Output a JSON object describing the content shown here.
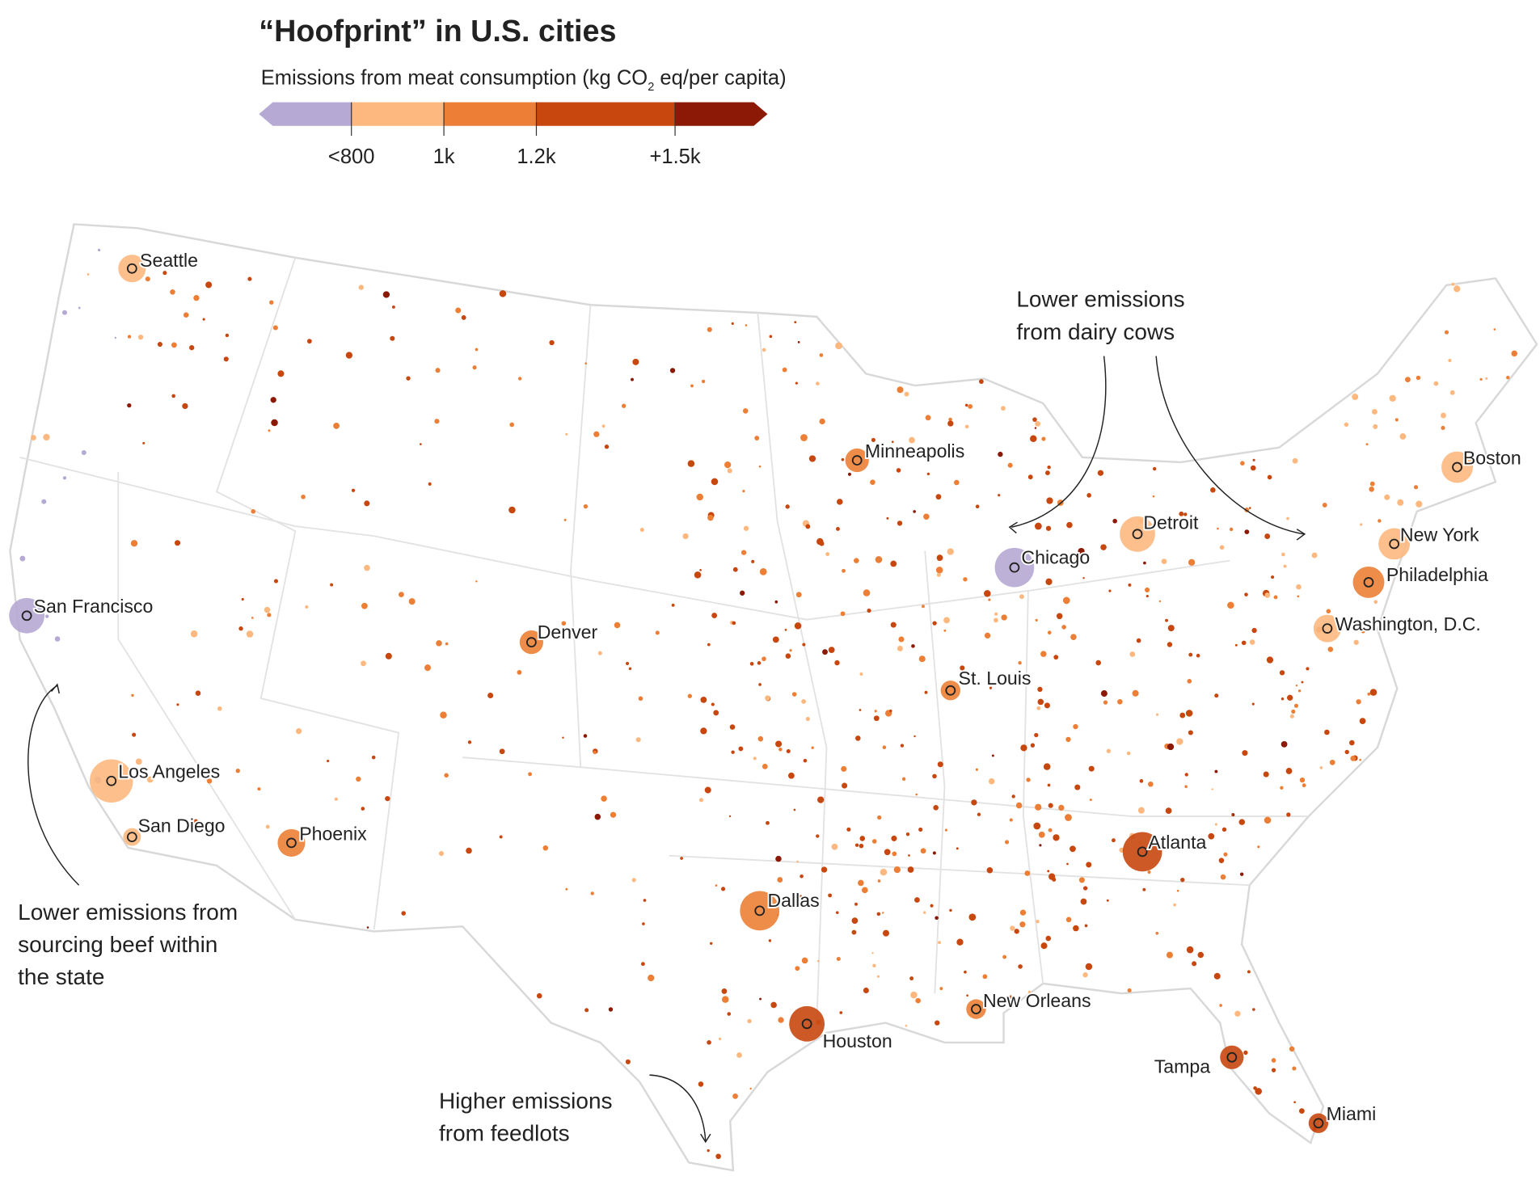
{
  "title": "“Hoofprint” in U.S. cities",
  "subtitle": {
    "before": "Emissions from meat consumption (kg CO",
    "subscript": "2",
    "after": " eq/per capita)"
  },
  "legend": {
    "colors": [
      "#b6a9d4",
      "#fdb87f",
      "#ec7f35",
      "#c7470e",
      "#8c1906"
    ],
    "ticks": [
      {
        "value": 800,
        "label": "<800"
      },
      {
        "value": 1000,
        "label": "1k"
      },
      {
        "value": 1200,
        "label": "1.2k"
      },
      {
        "value": 1500,
        "label": "+1.5k"
      }
    ]
  },
  "cities": [
    "Seattle",
    "San Francisco",
    "Los Angeles",
    "San Diego",
    "Phoenix",
    "Denver",
    "Dallas",
    "Houston",
    "Minneapolis",
    "Chicago",
    "St. Louis",
    "Detroit",
    "Atlanta",
    "New Orleans",
    "Tampa",
    "Miami",
    "Boston",
    "New York",
    "Philadelphia",
    "Washington, D.C."
  ],
  "annotations": [
    {
      "lines": [
        "Lower emissions",
        "from dairy cows"
      ]
    },
    {
      "lines": [
        "Lower emissions from",
        "sourcing beef within",
        "the state"
      ]
    },
    {
      "lines": [
        "Higher emissions",
        "from feedlots"
      ]
    }
  ]
}
